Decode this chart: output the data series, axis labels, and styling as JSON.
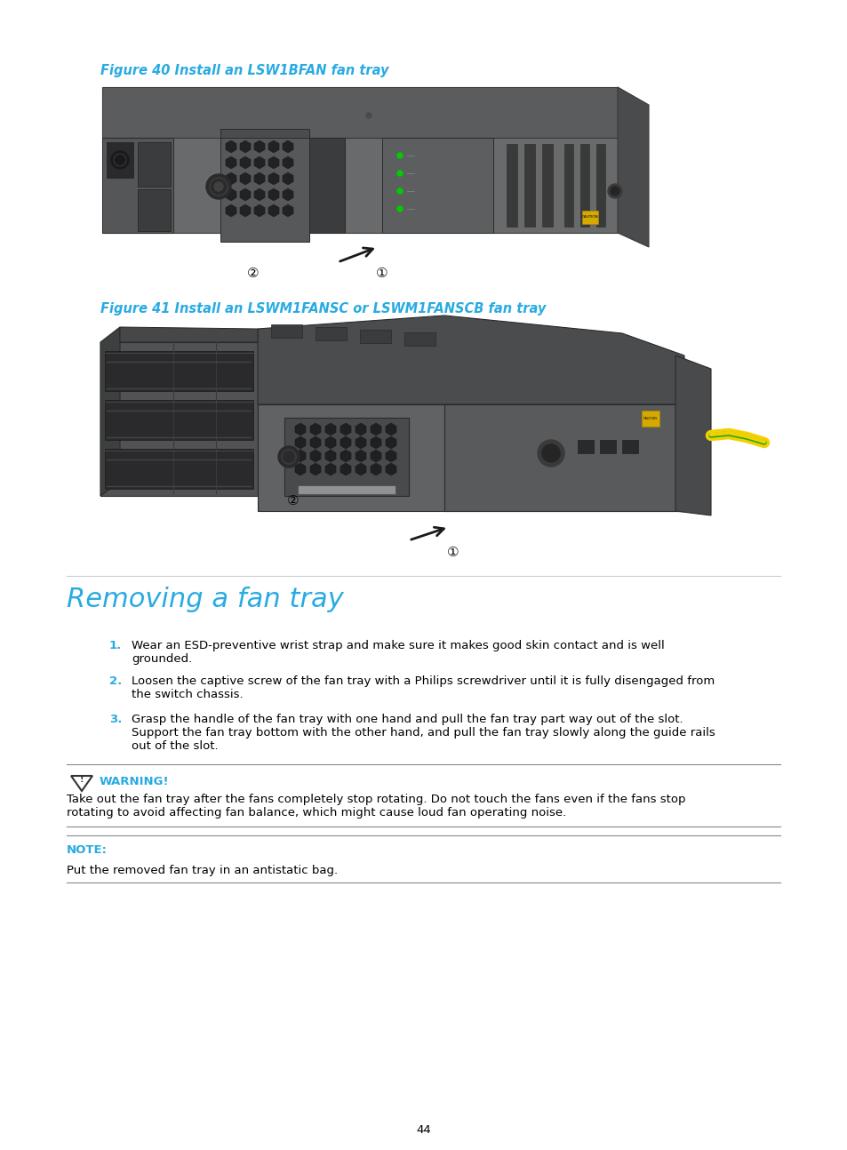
{
  "figure_title": "Figure 40 Install an LSW1BFAN fan tray",
  "figure_title_color": "#29ABE2",
  "figure_title_fontsize": 10.5,
  "figure41_title": "Figure 41 Install an LSWM1FANSC or LSWM1FANSCB fan tray",
  "figure41_title_color": "#29ABE2",
  "figure41_title_fontsize": 10.5,
  "section_title": "Removing a fan tray",
  "section_title_color": "#29ABE2",
  "section_title_fontsize": 22,
  "step1_num": "1.",
  "step1_num_color": "#29ABE2",
  "step1_text": "Wear an ESD-preventive wrist strap and make sure it makes good skin contact and is well\ngrounded.",
  "step2_num": "2.",
  "step2_num_color": "#29ABE2",
  "step2_text": "Loosen the captive screw of the fan tray with a Philips screwdriver until it is fully disengaged from\nthe switch chassis.",
  "step3_num": "3.",
  "step3_num_color": "#29ABE2",
  "step3_text": "Grasp the handle of the fan tray with one hand and pull the fan tray part way out of the slot.\nSupport the fan tray bottom with the other hand, and pull the fan tray slowly along the guide rails\nout of the slot.",
  "warning_label": "WARNING!",
  "warning_label_color": "#29ABE2",
  "warning_text": "Take out the fan tray after the fans completely stop rotating. Do not touch the fans even if the fans stop\nrotating to avoid affecting fan balance, which might cause loud fan operating noise.",
  "note_label": "NOTE:",
  "note_label_color": "#29ABE2",
  "note_text": "Put the removed fan tray in an antistatic bag.",
  "page_number": "44",
  "bg_color": "#ffffff",
  "text_color": "#000000",
  "body_fontsize": 9.5,
  "line_color": "#888888"
}
